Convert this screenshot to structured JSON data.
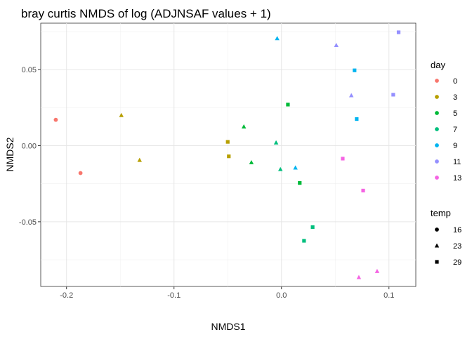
{
  "chart_data": {
    "type": "scatter",
    "title": "bray curtis NMDS of log (ADJNSAF values + 1)",
    "xlabel": "NMDS1",
    "ylabel": "NMDS2",
    "xlim": [
      -0.224,
      0.125
    ],
    "ylim": [
      -0.0925,
      0.0805
    ],
    "x_ticks": [
      -0.2,
      -0.1,
      0.0,
      0.1
    ],
    "x_tick_labels": [
      "-0.2",
      "-0.1",
      "0.0",
      "0.1"
    ],
    "y_ticks": [
      -0.05,
      0.0,
      0.05
    ],
    "y_tick_labels": [
      "-0.05",
      "0.00",
      "0.05"
    ],
    "grid": true,
    "legend_position": "right",
    "color_legend": {
      "title": "day",
      "entries": [
        {
          "label": "0",
          "color": "#F8766D"
        },
        {
          "label": "3",
          "color": "#B79F00"
        },
        {
          "label": "5",
          "color": "#00BA38"
        },
        {
          "label": "7",
          "color": "#00BF7D"
        },
        {
          "label": "9",
          "color": "#00B4F0"
        },
        {
          "label": "11",
          "color": "#9590FF"
        },
        {
          "label": "13",
          "color": "#F564E3"
        }
      ]
    },
    "shape_legend": {
      "title": "temp",
      "entries": [
        {
          "label": "16",
          "shape": "circle"
        },
        {
          "label": "23",
          "shape": "triangle"
        },
        {
          "label": "29",
          "shape": "square"
        }
      ]
    },
    "points": [
      {
        "x": -0.21,
        "y": 0.017,
        "day": "0",
        "temp": "16"
      },
      {
        "x": -0.187,
        "y": -0.018,
        "day": "0",
        "temp": "16"
      },
      {
        "x": -0.149,
        "y": 0.02,
        "day": "3",
        "temp": "23"
      },
      {
        "x": -0.132,
        "y": -0.0095,
        "day": "3",
        "temp": "23"
      },
      {
        "x": -0.05,
        "y": 0.0025,
        "day": "3",
        "temp": "29"
      },
      {
        "x": -0.049,
        "y": -0.007,
        "day": "3",
        "temp": "29"
      },
      {
        "x": -0.035,
        "y": 0.0125,
        "day": "5",
        "temp": "23"
      },
      {
        "x": -0.028,
        "y": -0.011,
        "day": "5",
        "temp": "23"
      },
      {
        "x": 0.006,
        "y": 0.027,
        "day": "5",
        "temp": "29"
      },
      {
        "x": 0.017,
        "y": -0.0245,
        "day": "5",
        "temp": "29"
      },
      {
        "x": -0.005,
        "y": 0.002,
        "day": "7",
        "temp": "23"
      },
      {
        "x": -0.001,
        "y": -0.0155,
        "day": "7",
        "temp": "23"
      },
      {
        "x": 0.029,
        "y": -0.0535,
        "day": "7",
        "temp": "29"
      },
      {
        "x": 0.021,
        "y": -0.0625,
        "day": "7",
        "temp": "29"
      },
      {
        "x": -0.004,
        "y": 0.0705,
        "day": "9",
        "temp": "23"
      },
      {
        "x": 0.013,
        "y": -0.0145,
        "day": "9",
        "temp": "23"
      },
      {
        "x": 0.068,
        "y": 0.0495,
        "day": "9",
        "temp": "29"
      },
      {
        "x": 0.07,
        "y": 0.0175,
        "day": "9",
        "temp": "29"
      },
      {
        "x": 0.051,
        "y": 0.066,
        "day": "11",
        "temp": "23"
      },
      {
        "x": 0.065,
        "y": 0.033,
        "day": "11",
        "temp": "23"
      },
      {
        "x": 0.109,
        "y": 0.0745,
        "day": "11",
        "temp": "29"
      },
      {
        "x": 0.104,
        "y": 0.0335,
        "day": "11",
        "temp": "29"
      },
      {
        "x": 0.057,
        "y": -0.0085,
        "day": "13",
        "temp": "29"
      },
      {
        "x": 0.076,
        "y": -0.0295,
        "day": "13",
        "temp": "29"
      },
      {
        "x": 0.072,
        "y": -0.0865,
        "day": "13",
        "temp": "23"
      },
      {
        "x": 0.089,
        "y": -0.0825,
        "day": "13",
        "temp": "23"
      }
    ]
  }
}
